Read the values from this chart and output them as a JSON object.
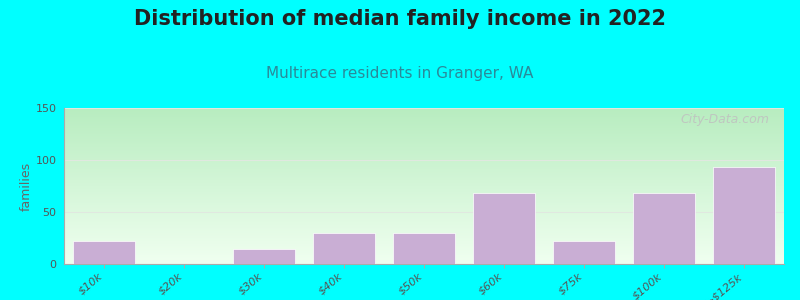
{
  "title": "Distribution of median family income in 2022",
  "subtitle": "Multirace residents in Granger, WA",
  "ylabel": "families",
  "categories": [
    "$10k",
    "$20k",
    "$30k",
    "$40k",
    "$50k",
    "$60k",
    "$75k",
    "$100k",
    ">$125k"
  ],
  "values": [
    22,
    0,
    14,
    30,
    30,
    68,
    22,
    68,
    93
  ],
  "bar_color": "#c9aed4",
  "bg_outer": "#00ffff",
  "bg_inner_top": "#b8edc0",
  "bg_inner_bottom": "#f0fff0",
  "ylim": [
    0,
    150
  ],
  "yticks": [
    0,
    50,
    100,
    150
  ],
  "title_fontsize": 15,
  "title_color": "#222222",
  "subtitle_fontsize": 11,
  "subtitle_color": "#2a8a9a",
  "ylabel_fontsize": 9,
  "tick_label_fontsize": 8,
  "watermark_text": "City-Data.com",
  "watermark_color": "#c0c0c0",
  "grid_color": "#e0e8e0",
  "bar_edge_color": "#ffffff"
}
